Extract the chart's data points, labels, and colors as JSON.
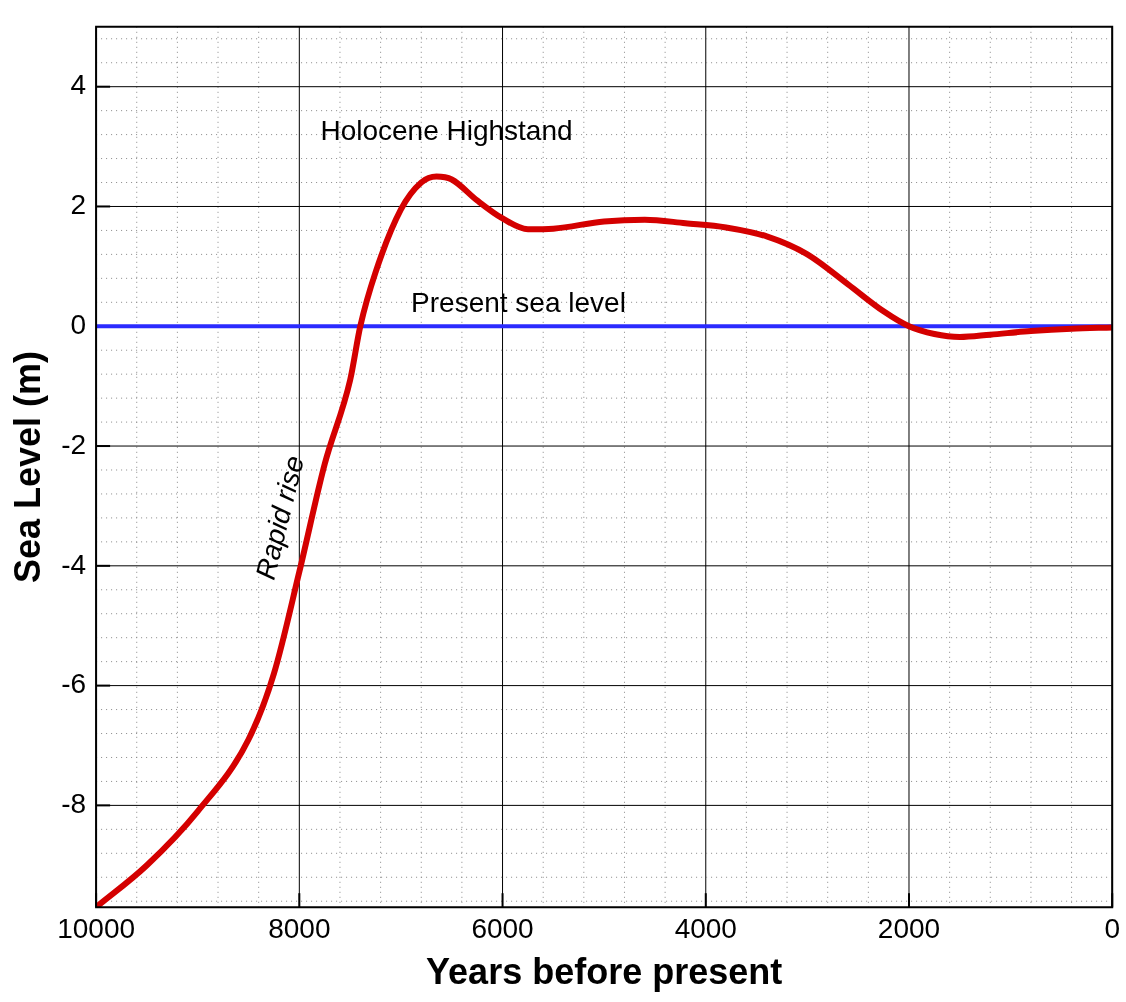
{
  "chart_data": {
    "type": "line",
    "xlabel": "Years before present",
    "ylabel": "Sea Level (m)",
    "x": [
      10000,
      9500,
      9000,
      8500,
      8250,
      8000,
      7750,
      7500,
      7400,
      7250,
      7000,
      6800,
      6650,
      6500,
      6250,
      6000,
      5750,
      5500,
      5000,
      4600,
      4200,
      3800,
      3400,
      3000,
      2600,
      2250,
      2000,
      1750,
      1500,
      1200,
      800,
      400,
      0
    ],
    "series": [
      {
        "color": "#d40000",
        "values": [
          -9.7,
          -9.0,
          -8.1,
          -6.9,
          -5.8,
          -4.1,
          -2.3,
          -0.9,
          0,
          0.9,
          1.95,
          2.4,
          2.5,
          2.45,
          2.1,
          1.8,
          1.62,
          1.63,
          1.75,
          1.78,
          1.72,
          1.65,
          1.5,
          1.2,
          0.7,
          0.25,
          0,
          -0.13,
          -0.18,
          -0.14,
          -0.08,
          -0.04,
          -0.02
        ]
      }
    ],
    "xlim": [
      10000,
      0
    ],
    "xticks": [
      10000,
      {
        "value": 9600,
        "label": null
      },
      {
        "value": 9200,
        "label": null
      },
      {
        "value": 8800,
        "label": null
      },
      {
        "value": 8400,
        "label": null
      },
      8000,
      {
        "value": 7600,
        "label": null
      },
      {
        "value": 7200,
        "label": null
      },
      {
        "value": 6800,
        "label": null
      },
      {
        "value": 6400,
        "label": null
      },
      6000,
      {
        "value": 5600,
        "label": null
      },
      {
        "value": 5200,
        "label": null
      },
      {
        "value": 4800,
        "label": null
      },
      {
        "value": 4400,
        "label": null
      },
      4000,
      {
        "value": 3600,
        "label": null
      },
      {
        "value": 3200,
        "label": null
      },
      {
        "value": 2800,
        "label": null
      },
      {
        "value": 2400,
        "label": null
      },
      2000,
      {
        "value": 1600,
        "label": null
      },
      {
        "value": 1200,
        "label": null
      },
      {
        "value": 800,
        "label": null
      },
      {
        "value": 400,
        "label": null
      },
      0
    ],
    "ylim": [
      -9.7,
      5
    ],
    "yticks": [
      {
        "value": -9.6,
        "label": null
      },
      {
        "value": -9.2,
        "label": null
      },
      {
        "value": -8.8,
        "label": null
      },
      {
        "value": -8.4,
        "label": null
      },
      -8,
      {
        "value": -7.6,
        "label": null
      },
      {
        "value": -7.2,
        "label": null
      },
      {
        "value": -6.8,
        "label": null
      },
      {
        "value": -6.4,
        "label": null
      },
      -6,
      {
        "value": -5.6,
        "label": null
      },
      {
        "value": -5.2,
        "label": null
      },
      {
        "value": -4.8,
        "label": null
      },
      {
        "value": -4.4,
        "label": null
      },
      -4,
      {
        "value": -3.6,
        "label": null
      },
      {
        "value": -3.2,
        "label": null
      },
      {
        "value": -2.8,
        "label": null
      },
      {
        "value": -2.4,
        "label": null
      },
      -2,
      {
        "value": -1.6,
        "label": null
      },
      {
        "value": -1.2,
        "label": null
      },
      {
        "value": -0.8,
        "label": null
      },
      {
        "value": -0.4,
        "label": null
      },
      0,
      {
        "value": 0.4,
        "label": null
      },
      {
        "value": 0.8,
        "label": null
      },
      {
        "value": 1.2,
        "label": null
      },
      {
        "value": 1.6,
        "label": null
      },
      2,
      {
        "value": 2.4,
        "label": null
      },
      {
        "value": 2.8,
        "label": null
      },
      {
        "value": 3.2,
        "label": null
      },
      {
        "value": 3.6,
        "label": null
      },
      4,
      {
        "value": 4.4,
        "label": null
      },
      {
        "value": 4.8,
        "label": null
      }
    ],
    "grid": true,
    "legend": false,
    "marker": "none",
    "line_style": "solid",
    "ref_lines": [
      {
        "axis": "y",
        "value": 0,
        "label": "Present sea level",
        "color": "#2b2bff"
      }
    ],
    "annotations": [
      {
        "text": "Holocene Highstand",
        "x": 6650,
        "y": 2.5
      },
      {
        "text": "Rapid rise",
        "x": 7900,
        "y": -3.2
      }
    ]
  }
}
